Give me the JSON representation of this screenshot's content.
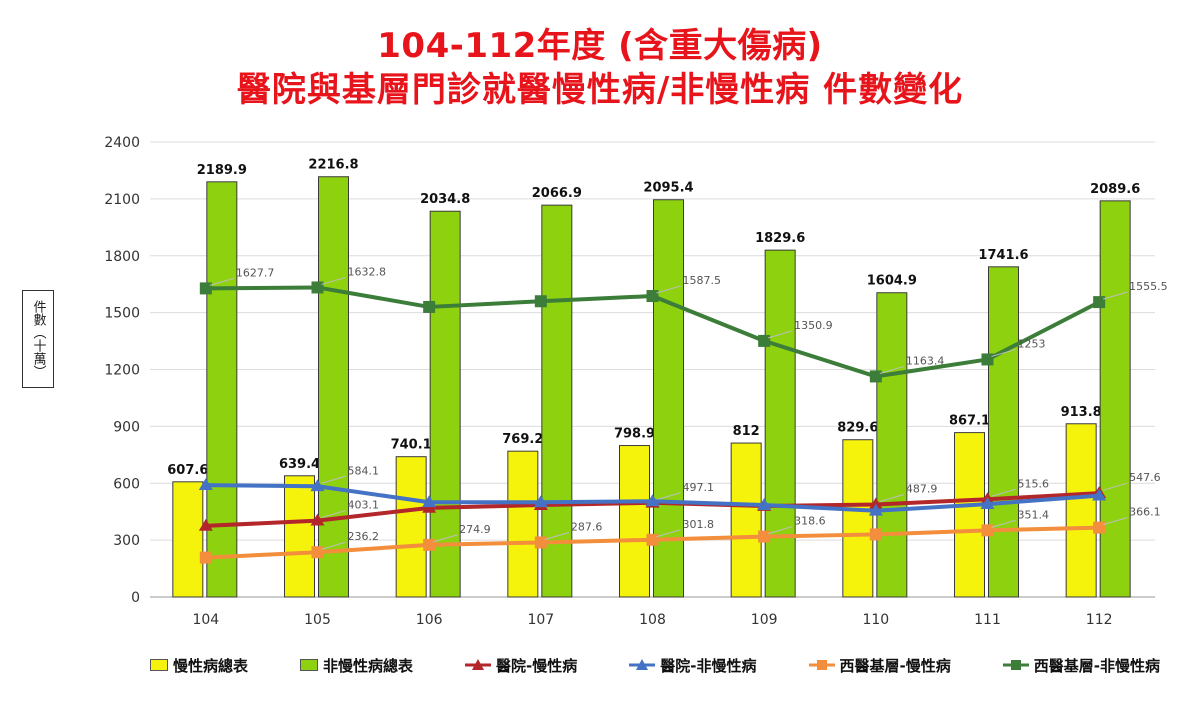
{
  "title_line1": "104-112年度 (含重大傷病)",
  "title_line2": "醫院與基層門診就醫慢性病/非慢性病 件數變化",
  "colors": {
    "title": "#e8141c",
    "bar_chronic": "#f5f20c",
    "bar_nonchronic": "#8ed20f",
    "hospital_chronic": "#b3262a",
    "hospital_nonchronic": "#4472c4",
    "clinic_chronic": "#f28e3c",
    "clinic_nonchronic": "#3c7d3a"
  },
  "chart_data": {
    "type": "bar",
    "categories": [
      "104",
      "105",
      "106",
      "107",
      "108",
      "109",
      "110",
      "111",
      "112"
    ],
    "ylabel": "件數（十萬）",
    "ylim": [
      0,
      2400
    ],
    "yticks": [
      0,
      300,
      600,
      900,
      1200,
      1500,
      1800,
      2100,
      2400
    ],
    "grid": true,
    "legend_position": "bottom",
    "bar_series": [
      {
        "name": "慢性病總表",
        "values": [
          607.6,
          639.4,
          740.1,
          769.2,
          798.9,
          812,
          829.6,
          867.1,
          913.8
        ],
        "labels": [
          "607.6",
          "639.4",
          "740.1",
          "769.2",
          "798.9",
          "812",
          "829.6",
          "867.1",
          "913.8"
        ]
      },
      {
        "name": "非慢性病總表",
        "values": [
          2189.9,
          2216.8,
          2034.8,
          2066.9,
          2095.4,
          1829.6,
          1604.9,
          1741.6,
          2089.6
        ],
        "labels": [
          "2189.9",
          "2216.8",
          "2034.8",
          "2066.9",
          "2095.4",
          "1829.6",
          "1604.9",
          "1741.6",
          "2089.6"
        ]
      }
    ],
    "line_series": [
      {
        "name": "醫院-慢性病",
        "marker": "triangle",
        "values": [
          375,
          403.1,
          470,
          485,
          497.1,
          480,
          487.9,
          515.6,
          547.6
        ],
        "labels": [
          null,
          "403.1",
          null,
          null,
          "497.1",
          null,
          "487.9",
          "515.6",
          "547.6"
        ]
      },
      {
        "name": "醫院-非慢性病",
        "marker": "triangle",
        "values": [
          590,
          584.1,
          500,
          500,
          505,
          485,
          455,
          490,
          535
        ],
        "labels": [
          null,
          "584.1",
          null,
          null,
          null,
          null,
          null,
          null,
          null
        ]
      },
      {
        "name": "西醫基層-慢性病",
        "marker": "square",
        "values": [
          208,
          236.2,
          274.9,
          287.6,
          301.8,
          318.6,
          330,
          351.4,
          366.1
        ],
        "labels": [
          null,
          "236.2",
          "274.9",
          "287.6",
          "301.8",
          "318.6",
          null,
          "351.4",
          "366.1"
        ]
      },
      {
        "name": "西醫基層-非慢性病",
        "marker": "square",
        "values": [
          1627.7,
          1632.8,
          1530,
          1560,
          1587.5,
          1350.9,
          1163.4,
          1253,
          1555.5
        ],
        "labels": [
          "1627.7",
          "1632.8",
          null,
          null,
          "1587.5",
          "1350.9",
          "1163.4",
          "1253",
          "1555.5"
        ]
      }
    ]
  },
  "legend": [
    {
      "label": "慢性病總表",
      "kind": "bar",
      "color_key": "bar_chronic"
    },
    {
      "label": "非慢性病總表",
      "kind": "bar",
      "color_key": "bar_nonchronic"
    },
    {
      "label": "醫院-慢性病",
      "kind": "line",
      "marker": "triangle",
      "color_key": "hospital_chronic"
    },
    {
      "label": "醫院-非慢性病",
      "kind": "line",
      "marker": "triangle",
      "color_key": "hospital_nonchronic"
    },
    {
      "label": "西醫基層-慢性病",
      "kind": "line",
      "marker": "square",
      "color_key": "clinic_chronic"
    },
    {
      "label": "西醫基層-非慢性病",
      "kind": "line",
      "marker": "square",
      "color_key": "clinic_nonchronic"
    }
  ]
}
